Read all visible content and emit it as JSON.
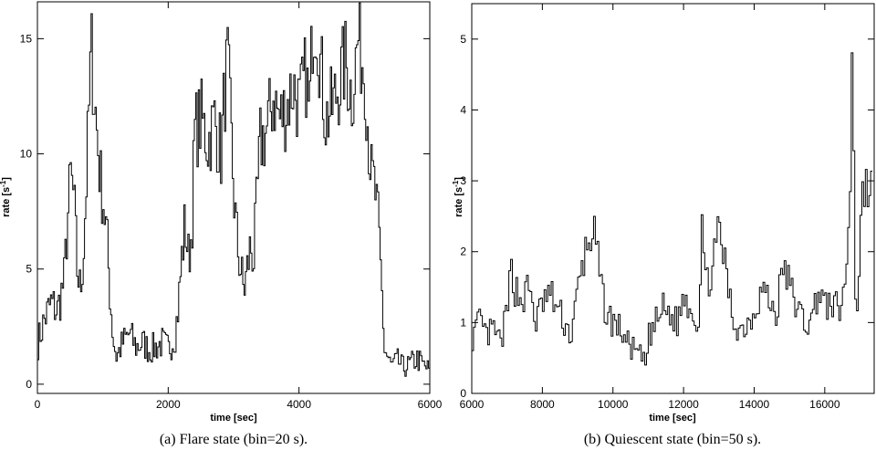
{
  "chart_data": [
    {
      "type": "line",
      "caption": "(a) Flare state (bin=20 s).",
      "xlabel": "time [sec]",
      "ylabel": "rate [s",
      "ylabel_sup": "-1",
      "ylabel_end": "]",
      "xlim": [
        0,
        6000
      ],
      "ylim": [
        -0.4,
        16.6
      ],
      "xticks": [
        0,
        2000,
        4000,
        6000
      ],
      "yticks": [
        0,
        5,
        10,
        15
      ],
      "bin": 20,
      "grid": false,
      "series": [
        {
          "x": [
            0,
            100,
            200,
            300,
            400,
            450,
            500,
            550,
            600,
            650,
            700,
            750,
            800,
            820,
            850,
            900,
            950,
            1000,
            1050,
            1100,
            1150,
            1200,
            1300,
            1400,
            1500,
            1600,
            1700,
            1800,
            1900,
            2000,
            2100,
            2150,
            2200,
            2250,
            2300,
            2350,
            2400,
            2500,
            2600,
            2700,
            2800,
            2850,
            2900,
            2950,
            3000,
            3050,
            3100,
            3150,
            3200,
            3250,
            3300,
            3350,
            3400,
            3500,
            3600,
            3700,
            3800,
            3900,
            4000,
            4100,
            4150,
            4200,
            4250,
            4300,
            4350,
            4400,
            4500,
            4600,
            4700,
            4800,
            4900,
            5000,
            5050,
            5100,
            5150,
            5200,
            5250,
            5300,
            5400,
            5500,
            5600,
            5700,
            5800,
            5900,
            6000
          ],
          "values": [
            1.8,
            2.8,
            3.5,
            3.2,
            4.5,
            7.0,
            9.0,
            8.0,
            5.0,
            4.0,
            6.0,
            9.5,
            13.5,
            14.5,
            13.0,
            11.0,
            9.0,
            8.0,
            6.5,
            4.0,
            2.0,
            1.2,
            1.8,
            2.2,
            1.6,
            1.8,
            1.5,
            1.6,
            1.8,
            1.5,
            2.2,
            3.5,
            5.5,
            7.0,
            5.5,
            6.5,
            11.0,
            11.5,
            10.5,
            11.5,
            10.0,
            12.5,
            14.0,
            11.0,
            8.0,
            6.0,
            5.0,
            4.0,
            5.0,
            6.0,
            5.5,
            8.0,
            10.5,
            11.0,
            12.5,
            11.5,
            12.0,
            13.0,
            12.0,
            13.5,
            11.5,
            15.5,
            16.2,
            14.5,
            13.0,
            11.5,
            12.0,
            13.0,
            14.0,
            12.5,
            15.0,
            13.5,
            11.0,
            9.0,
            8.5,
            7.0,
            4.5,
            1.5,
            0.8,
            1.0,
            0.7,
            0.9,
            1.1,
            0.8,
            0.6
          ]
        }
      ]
    },
    {
      "type": "line",
      "caption": "(b) Quiescent state (bin=50 s).",
      "xlabel": "time [sec]",
      "ylabel": "rate [s",
      "ylabel_sup": "-1",
      "ylabel_end": "]",
      "xlim": [
        6000,
        17400
      ],
      "ylim": [
        0,
        5.5
      ],
      "xticks": [
        6000,
        8000,
        10000,
        12000,
        14000,
        16000
      ],
      "yticks": [
        0,
        1,
        2,
        3,
        4,
        5
      ],
      "bin": 50,
      "grid": false,
      "series": [
        {
          "x": [
            6000,
            6200,
            6400,
            6600,
            6800,
            7000,
            7100,
            7200,
            7400,
            7600,
            7800,
            8000,
            8200,
            8400,
            8600,
            8800,
            9000,
            9200,
            9400,
            9500,
            9600,
            9800,
            10000,
            10200,
            10400,
            10600,
            10800,
            10900,
            11000,
            11200,
            11400,
            11600,
            11800,
            12000,
            12200,
            12400,
            12500,
            12600,
            12800,
            13000,
            13100,
            13200,
            13400,
            13600,
            13800,
            14000,
            14200,
            14400,
            14600,
            14800,
            15000,
            15200,
            15400,
            15600,
            15800,
            16000,
            16200,
            16400,
            16500,
            16600,
            16700,
            16750,
            16800,
            16850,
            16900,
            17000,
            17100,
            17200,
            17300
          ],
          "values": [
            0.8,
            1.0,
            0.8,
            0.9,
            0.7,
            1.2,
            1.8,
            1.5,
            1.3,
            1.5,
            1.0,
            1.3,
            1.4,
            1.2,
            1.0,
            0.8,
            1.5,
            2.0,
            2.3,
            2.1,
            1.6,
            1.1,
            1.0,
            0.9,
            0.7,
            0.6,
            0.5,
            0.4,
            0.8,
            1.0,
            1.2,
            1.1,
            1.0,
            1.4,
            1.2,
            1.0,
            2.5,
            1.5,
            1.8,
            2.3,
            2.0,
            1.6,
            1.0,
            0.9,
            1.0,
            1.2,
            1.5,
            1.3,
            1.1,
            1.8,
            1.5,
            1.2,
            1.0,
            1.0,
            1.5,
            1.2,
            1.3,
            1.1,
            1.5,
            1.7,
            3.0,
            5.0,
            3.5,
            1.5,
            1.1,
            2.5,
            3.0,
            2.8,
            3.0
          ]
        }
      ]
    }
  ]
}
